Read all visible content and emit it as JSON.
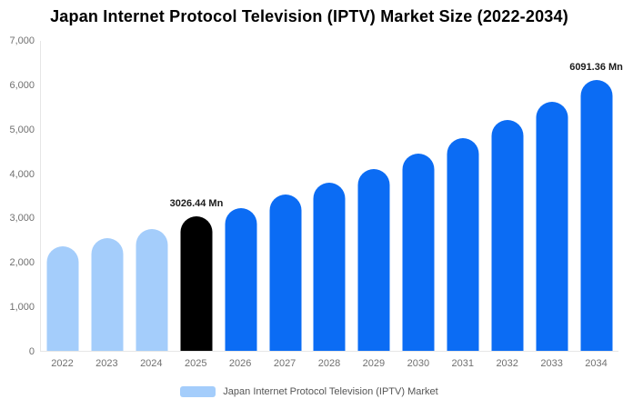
{
  "title": "Japan Internet Protocol Television (IPTV) Market Size (2022-2034)",
  "legend": {
    "label": "Japan Internet Protocol Television (IPTV) Market",
    "swatch_color": "#A4CDFB"
  },
  "chart_data": {
    "type": "bar",
    "title": "Japan Internet Protocol Television (IPTV) Market Size (2022-2034)",
    "unit": "Mn",
    "categories": [
      "2022",
      "2023",
      "2024",
      "2025",
      "2026",
      "2027",
      "2028",
      "2029",
      "2030",
      "2031",
      "2032",
      "2033",
      "2034"
    ],
    "values": [
      2360,
      2540,
      2750,
      3026.44,
      3220,
      3530,
      3780,
      4090,
      4435,
      4785,
      5195,
      5605,
      6091.36
    ],
    "roles": [
      "historical",
      "historical",
      "historical",
      "base",
      "forecast",
      "forecast",
      "forecast",
      "forecast",
      "forecast",
      "forecast",
      "forecast",
      "forecast",
      "forecast"
    ],
    "colors": {
      "historical": "#A4CDFB",
      "base": "#000000",
      "forecast": "#0B6CF4"
    },
    "annotations": {
      "2025": "3026.44 Mn",
      "2034": "6091.36 Mn"
    },
    "ylim": [
      0,
      7000
    ],
    "ytick_labels": [
      "0",
      "1,000",
      "2,000",
      "3,000",
      "4,000",
      "5,000",
      "6,000",
      "7,000"
    ],
    "ytick_values": [
      0,
      1000,
      2000,
      3000,
      4000,
      5000,
      6000,
      7000
    ],
    "grid": "none",
    "legend_position": "bottom-center",
    "axis_line_color": "#e6e6e6",
    "tick_text_color": "#707070"
  }
}
